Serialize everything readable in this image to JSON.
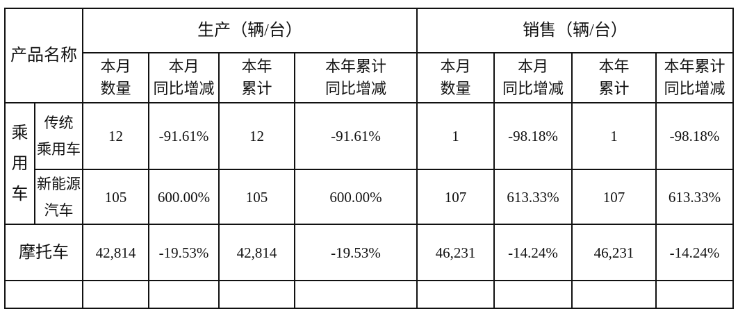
{
  "header": {
    "product_name": "产品名称",
    "production": "生产（辆/台）",
    "sales": "销售（辆/台）",
    "subcols": [
      [
        "本月",
        "数量"
      ],
      [
        "本月",
        "同比增减"
      ],
      [
        "本年",
        "累计"
      ],
      [
        "本年累计",
        "同比增减"
      ]
    ]
  },
  "rows": {
    "passenger_group": [
      "乘",
      "用",
      "车"
    ],
    "traditional": {
      "label": [
        "传统",
        "乘用车"
      ],
      "values": [
        "12",
        "-91.61%",
        "12",
        "-91.61%",
        "1",
        "-98.18%",
        "1",
        "-98.18%"
      ]
    },
    "nev": {
      "label": [
        "新能源",
        "汽车"
      ],
      "values": [
        "105",
        "600.00%",
        "105",
        "600.00%",
        "107",
        "613.33%",
        "107",
        "613.33%"
      ]
    },
    "motorcycle": {
      "label": "摩托车",
      "values": [
        "42,814",
        "-19.53%",
        "42,814",
        "-19.53%",
        "46,231",
        "-14.24%",
        "46,231",
        "-14.24%"
      ]
    }
  }
}
